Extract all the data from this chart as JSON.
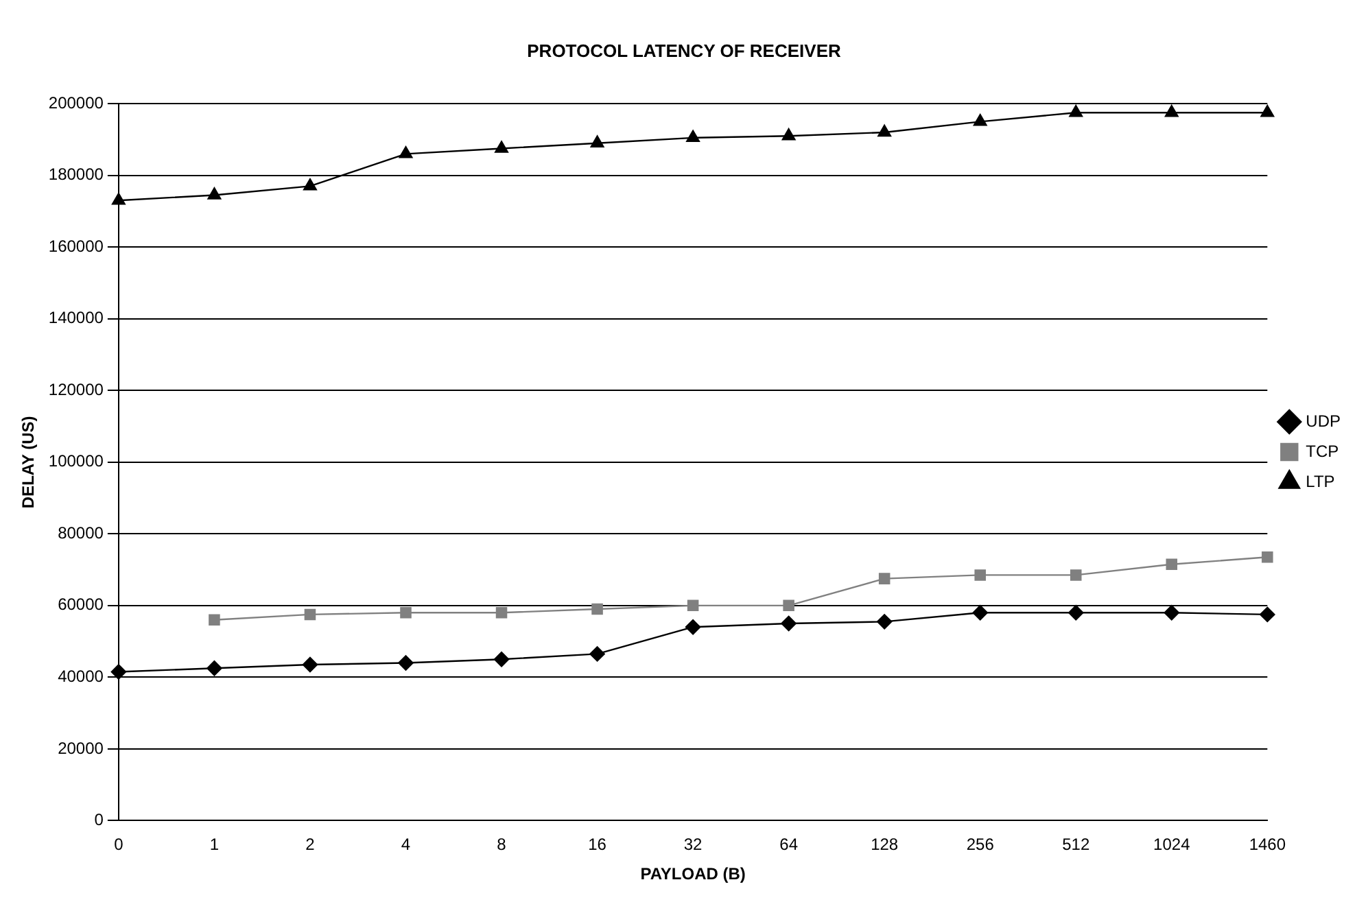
{
  "chart_data": {
    "type": "line",
    "title": "PROTOCOL LATENCY OF RECEIVER",
    "xlabel": "PAYLOAD (B)",
    "ylabel": "DELAY (US)",
    "categories": [
      "0",
      "1",
      "2",
      "4",
      "8",
      "16",
      "32",
      "64",
      "128",
      "256",
      "512",
      "1024",
      "1460"
    ],
    "series": [
      {
        "name": "UDP",
        "color": "#000000",
        "marker": "diamond",
        "values": [
          41500,
          42500,
          43500,
          44000,
          45000,
          46500,
          54000,
          55000,
          55500,
          58000,
          58000,
          58000,
          57500
        ]
      },
      {
        "name": "TCP",
        "color": "#808080",
        "marker": "square",
        "values": [
          null,
          56000,
          57500,
          58000,
          58000,
          59000,
          60000,
          60000,
          67500,
          68500,
          68500,
          71500,
          73500
        ]
      },
      {
        "name": "LTP",
        "color": "#000000",
        "marker": "triangle",
        "values": [
          173000,
          174500,
          177000,
          186000,
          187500,
          189000,
          190500,
          191000,
          192000,
          195000,
          197500,
          197500,
          197500
        ]
      }
    ],
    "ylim": [
      0,
      200000
    ],
    "yticks": [
      0,
      20000,
      40000,
      60000,
      80000,
      100000,
      120000,
      140000,
      160000,
      180000,
      200000
    ],
    "grid": "y",
    "legend": "right",
    "line_style": "solid"
  }
}
